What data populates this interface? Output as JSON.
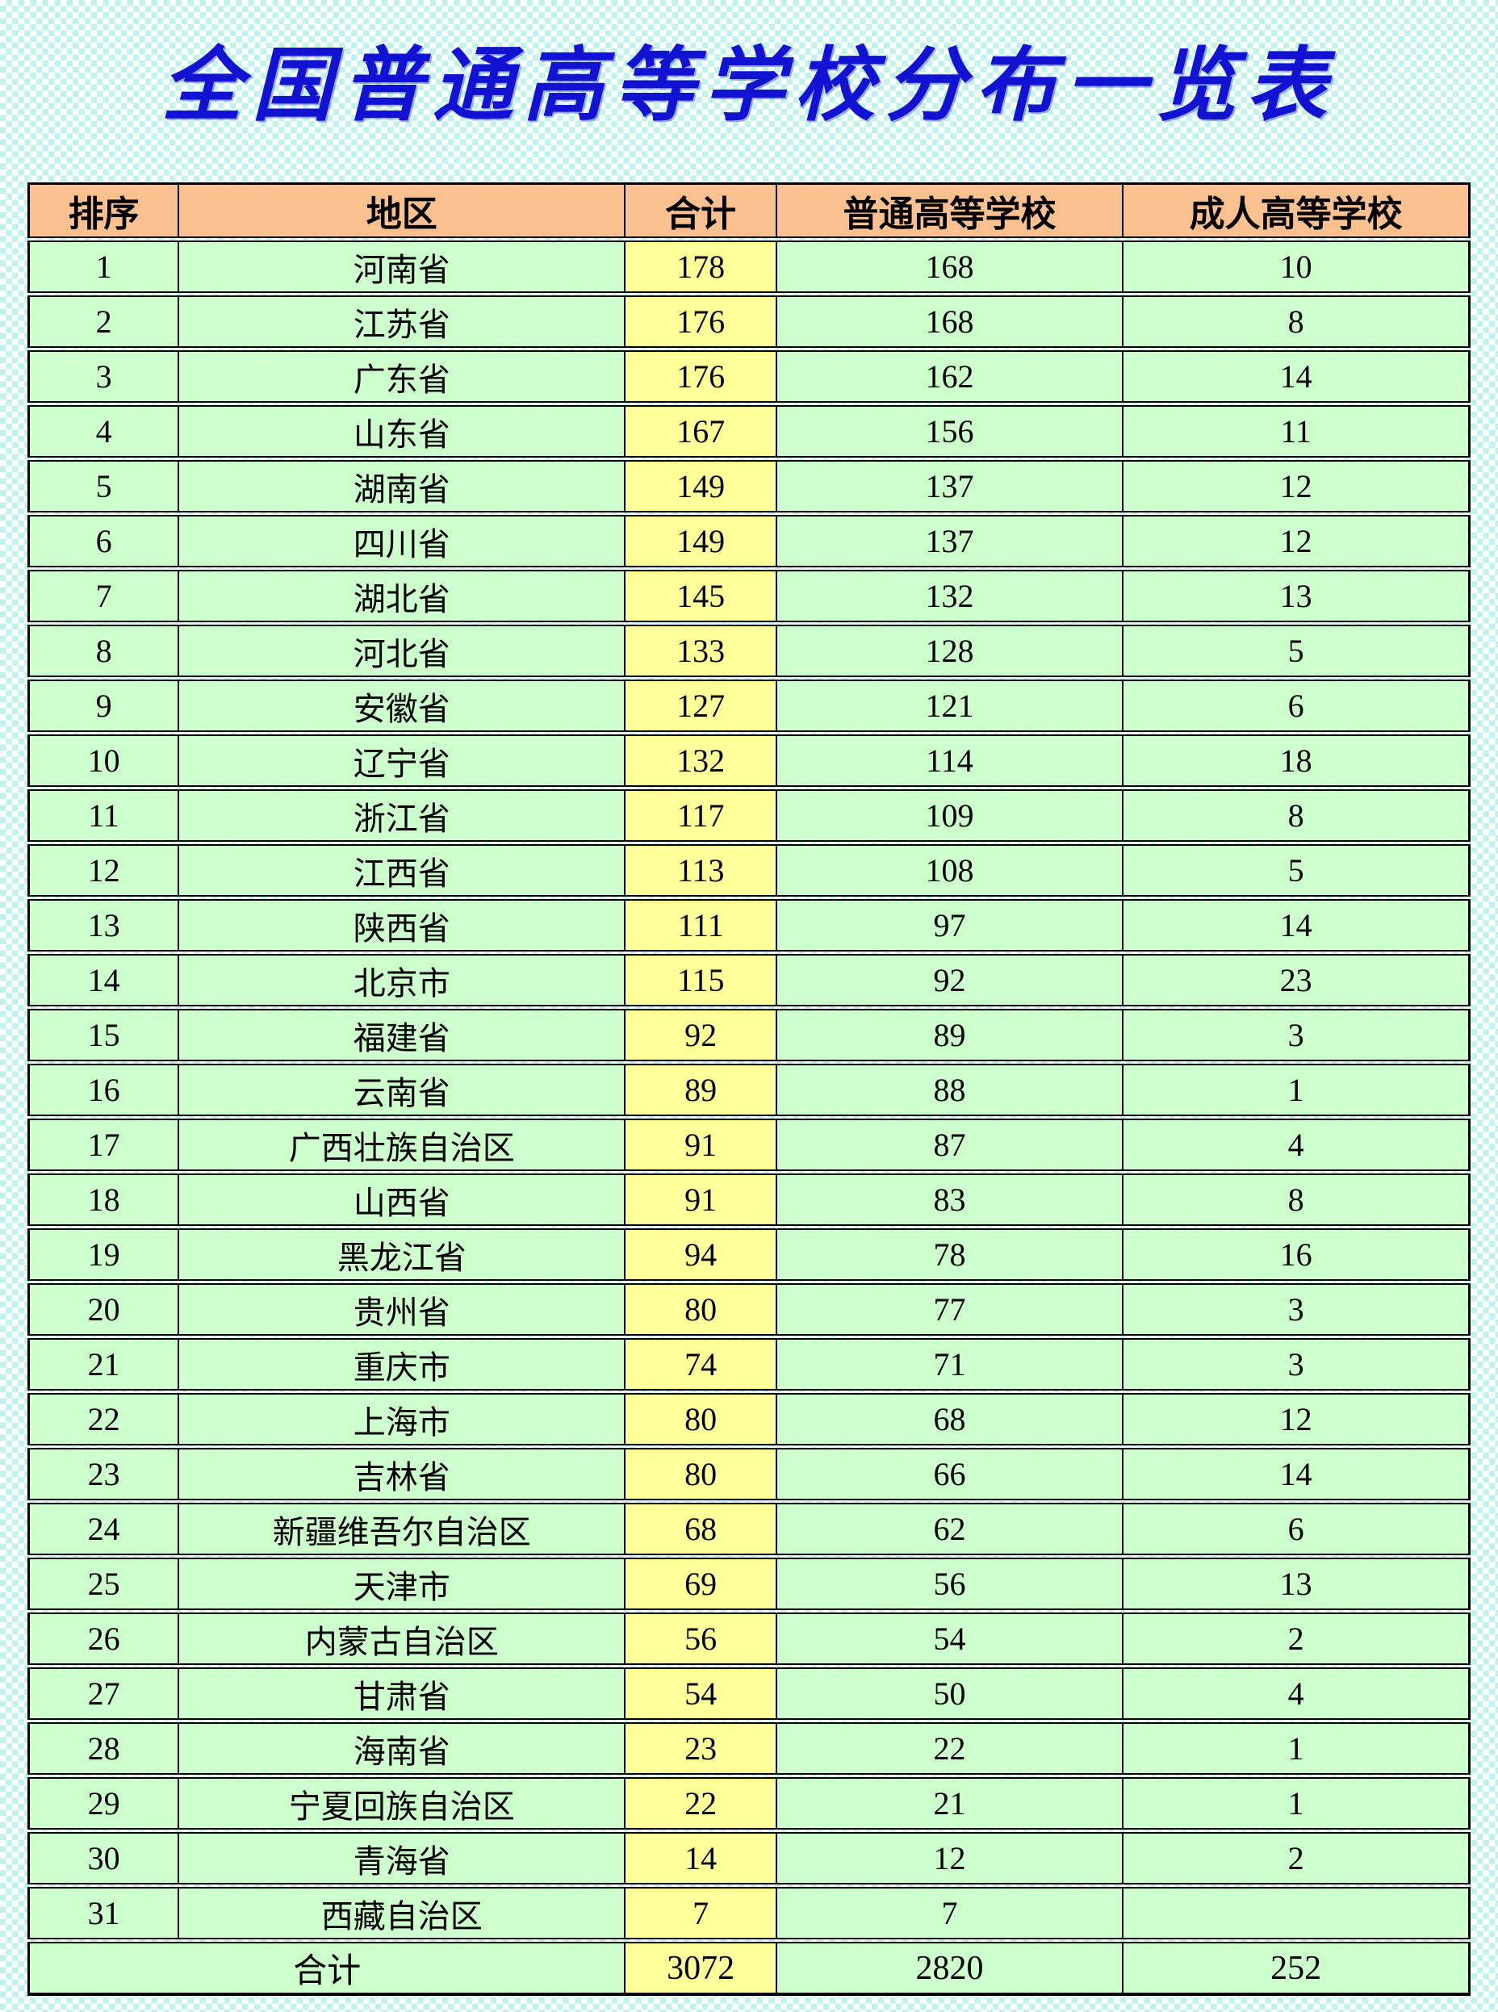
{
  "page": {
    "title": "全国普通高等学校分布一览表"
  },
  "colors": {
    "title": "#1212d2",
    "header_bg": "#fac090",
    "row_bg": "#ccffcc",
    "highlight_col_bg": "#ffff99",
    "border": "#000000",
    "checker": "#bff3eb"
  },
  "table": {
    "columns": [
      "排序",
      "地区",
      "合计",
      "普通高等学校",
      "成人高等学校"
    ],
    "rows": [
      {
        "rank": 1,
        "region": "河南省",
        "total": 178,
        "regular": 168,
        "adult": 10
      },
      {
        "rank": 2,
        "region": "江苏省",
        "total": 176,
        "regular": 168,
        "adult": 8
      },
      {
        "rank": 3,
        "region": "广东省",
        "total": 176,
        "regular": 162,
        "adult": 14
      },
      {
        "rank": 4,
        "region": "山东省",
        "total": 167,
        "regular": 156,
        "adult": 11
      },
      {
        "rank": 5,
        "region": "湖南省",
        "total": 149,
        "regular": 137,
        "adult": 12
      },
      {
        "rank": 6,
        "region": "四川省",
        "total": 149,
        "regular": 137,
        "adult": 12
      },
      {
        "rank": 7,
        "region": "湖北省",
        "total": 145,
        "regular": 132,
        "adult": 13
      },
      {
        "rank": 8,
        "region": "河北省",
        "total": 133,
        "regular": 128,
        "adult": 5
      },
      {
        "rank": 9,
        "region": "安徽省",
        "total": 127,
        "regular": 121,
        "adult": 6
      },
      {
        "rank": 10,
        "region": "辽宁省",
        "total": 132,
        "regular": 114,
        "adult": 18
      },
      {
        "rank": 11,
        "region": "浙江省",
        "total": 117,
        "regular": 109,
        "adult": 8
      },
      {
        "rank": 12,
        "region": "江西省",
        "total": 113,
        "regular": 108,
        "adult": 5
      },
      {
        "rank": 13,
        "region": "陕西省",
        "total": 111,
        "regular": 97,
        "adult": 14
      },
      {
        "rank": 14,
        "region": "北京市",
        "total": 115,
        "regular": 92,
        "adult": 23
      },
      {
        "rank": 15,
        "region": "福建省",
        "total": 92,
        "regular": 89,
        "adult": 3
      },
      {
        "rank": 16,
        "region": "云南省",
        "total": 89,
        "regular": 88,
        "adult": 1
      },
      {
        "rank": 17,
        "region": "广西壮族自治区",
        "total": 91,
        "regular": 87,
        "adult": 4
      },
      {
        "rank": 18,
        "region": "山西省",
        "total": 91,
        "regular": 83,
        "adult": 8
      },
      {
        "rank": 19,
        "region": "黑龙江省",
        "total": 94,
        "regular": 78,
        "adult": 16
      },
      {
        "rank": 20,
        "region": "贵州省",
        "total": 80,
        "regular": 77,
        "adult": 3
      },
      {
        "rank": 21,
        "region": "重庆市",
        "total": 74,
        "regular": 71,
        "adult": 3
      },
      {
        "rank": 22,
        "region": "上海市",
        "total": 80,
        "regular": 68,
        "adult": 12
      },
      {
        "rank": 23,
        "region": "吉林省",
        "total": 80,
        "regular": 66,
        "adult": 14
      },
      {
        "rank": 24,
        "region": "新疆维吾尔自治区",
        "total": 68,
        "regular": 62,
        "adult": 6
      },
      {
        "rank": 25,
        "region": "天津市",
        "total": 69,
        "regular": 56,
        "adult": 13
      },
      {
        "rank": 26,
        "region": "内蒙古自治区",
        "total": 56,
        "regular": 54,
        "adult": 2
      },
      {
        "rank": 27,
        "region": "甘肃省",
        "total": 54,
        "regular": 50,
        "adult": 4
      },
      {
        "rank": 28,
        "region": "海南省",
        "total": 23,
        "regular": 22,
        "adult": 1
      },
      {
        "rank": 29,
        "region": "宁夏回族自治区",
        "total": 22,
        "regular": 21,
        "adult": 1
      },
      {
        "rank": 30,
        "region": "青海省",
        "total": 14,
        "regular": 12,
        "adult": 2
      },
      {
        "rank": 31,
        "region": "西藏自治区",
        "total": 7,
        "regular": 7,
        "adult": ""
      }
    ],
    "footer": {
      "label": "合计",
      "total": 3072,
      "regular": 2820,
      "adult": 252
    }
  }
}
